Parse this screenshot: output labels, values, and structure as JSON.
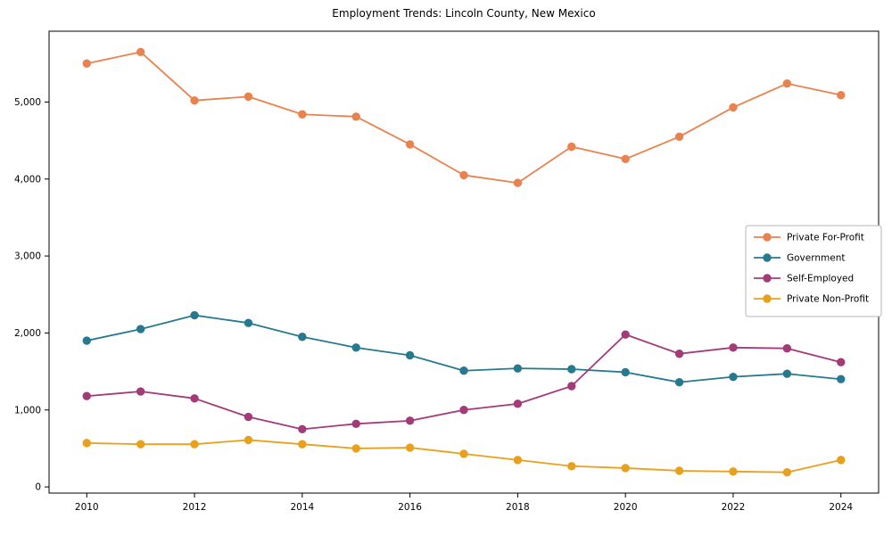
{
  "chart_data": {
    "type": "line",
    "title": "Employment Trends: Lincoln County, New Mexico",
    "xlabel": "",
    "ylabel": "",
    "x": [
      2010,
      2011,
      2012,
      2013,
      2014,
      2015,
      2016,
      2017,
      2018,
      2019,
      2020,
      2021,
      2022,
      2023,
      2024
    ],
    "xticks": [
      2010,
      2012,
      2014,
      2016,
      2018,
      2020,
      2022,
      2024
    ],
    "yticks": [
      0,
      1000,
      2000,
      3000,
      4000,
      5000
    ],
    "ytick_labels": [
      "0",
      "1,000",
      "2,000",
      "3,000",
      "4,000",
      "5,000"
    ],
    "ylim": [
      -80,
      5920
    ],
    "grid": false,
    "legend_position": "center right",
    "series": [
      {
        "name": "Private For-Profit",
        "color": "#e8824e",
        "marker": "circle",
        "values": [
          5500,
          5650,
          5020,
          5070,
          4840,
          4810,
          4450,
          4050,
          3950,
          4420,
          4260,
          4550,
          4930,
          5240,
          5090
        ]
      },
      {
        "name": "Government",
        "color": "#26798e",
        "marker": "circle",
        "values": [
          1900,
          2050,
          2230,
          2130,
          1950,
          1810,
          1710,
          1510,
          1540,
          1530,
          1490,
          1360,
          1430,
          1470,
          1400
        ]
      },
      {
        "name": "Self-Employed",
        "color": "#a23b78",
        "marker": "circle",
        "values": [
          1180,
          1240,
          1150,
          910,
          750,
          820,
          860,
          1000,
          1080,
          1310,
          1980,
          1730,
          1810,
          1800,
          1620
        ]
      },
      {
        "name": "Private Non-Profit",
        "color": "#e8a01d",
        "marker": "circle",
        "values": [
          570,
          555,
          555,
          610,
          555,
          500,
          510,
          430,
          350,
          270,
          245,
          210,
          200,
          190,
          350
        ]
      }
    ]
  }
}
